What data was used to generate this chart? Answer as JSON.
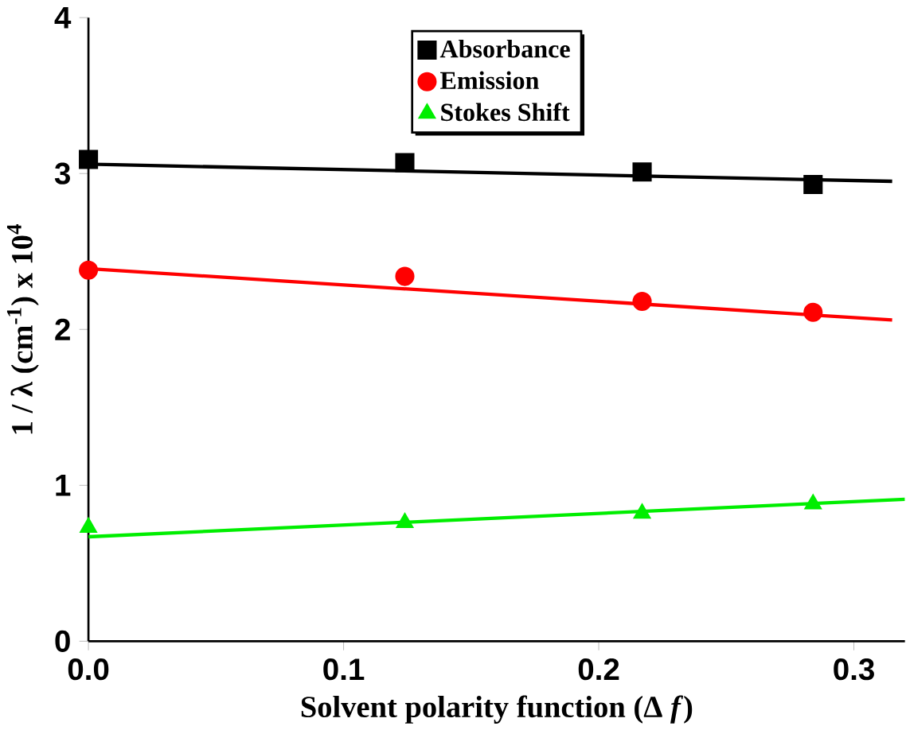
{
  "chart_data": {
    "type": "scatter",
    "xlabel": "Solvent polarity function (Δ *f*)",
    "ylabel": "1 / λ (cm$^{-1}$) x 10$^{4}$",
    "x": [
      0,
      0.124,
      0.217,
      0.284
    ],
    "series": [
      {
        "name": "Absorbance",
        "color": "#000000",
        "marker": "square",
        "values": [
          3.09,
          3.07,
          3.01,
          2.93
        ]
      },
      {
        "name": "Emission",
        "color": "#ff0000",
        "marker": "circle",
        "values": [
          2.38,
          2.34,
          2.18,
          2.11
        ]
      },
      {
        "name": "Stokes Shift",
        "color": "#00ee00",
        "marker": "triangle",
        "values": [
          0.73,
          0.76,
          0.82,
          0.88
        ]
      },
      {
        "type": "line",
        "color": "#000000",
        "x": [
          0,
          0.315
        ],
        "values": [
          3.06,
          2.95
        ]
      },
      {
        "type": "line",
        "color": "#ff0000",
        "x": [
          0,
          0.315
        ],
        "values": [
          2.39,
          2.06
        ]
      },
      {
        "type": "line",
        "color": "#00ee00",
        "x": [
          0,
          0.32
        ],
        "values": [
          0.67,
          0.91
        ]
      }
    ],
    "xlim": [
      0,
      0.32
    ],
    "ylim": [
      0,
      4
    ],
    "xticks": [
      {
        "value": 0,
        "label": "0.0"
      },
      0.1,
      0.2,
      0.3
    ],
    "yticks": [
      0,
      1,
      2,
      3,
      4
    ],
    "legend": "top",
    "grid": false
  }
}
